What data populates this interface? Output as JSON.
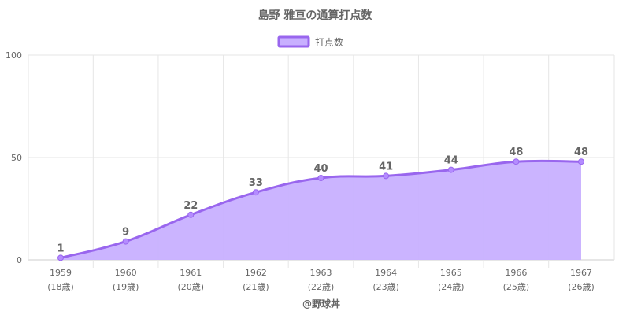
{
  "chart_data": {
    "type": "area",
    "title": "島野 雅亘の通算打点数",
    "legend": {
      "position": "top",
      "entries": [
        "打点数"
      ]
    },
    "categories": [
      {
        "year": "1959",
        "age": "(18歳)"
      },
      {
        "year": "1960",
        "age": "(19歳)"
      },
      {
        "year": "1961",
        "age": "(20歳)"
      },
      {
        "year": "1962",
        "age": "(21歳)"
      },
      {
        "year": "1963",
        "age": "(22歳)"
      },
      {
        "year": "1964",
        "age": "(23歳)"
      },
      {
        "year": "1965",
        "age": "(24歳)"
      },
      {
        "year": "1966",
        "age": "(25歳)"
      },
      {
        "year": "1967",
        "age": "(26歳)"
      }
    ],
    "series": [
      {
        "name": "打点数",
        "values": [
          1,
          9,
          22,
          33,
          40,
          41,
          44,
          48,
          48
        ]
      }
    ],
    "yticks": [
      "0",
      "50",
      "100"
    ],
    "ylim": [
      0,
      100
    ],
    "grid": true,
    "colors": {
      "line": "#9966ee",
      "fill": "#c8b0ff",
      "point": "#b48cff"
    },
    "footer": "@野球丼"
  }
}
